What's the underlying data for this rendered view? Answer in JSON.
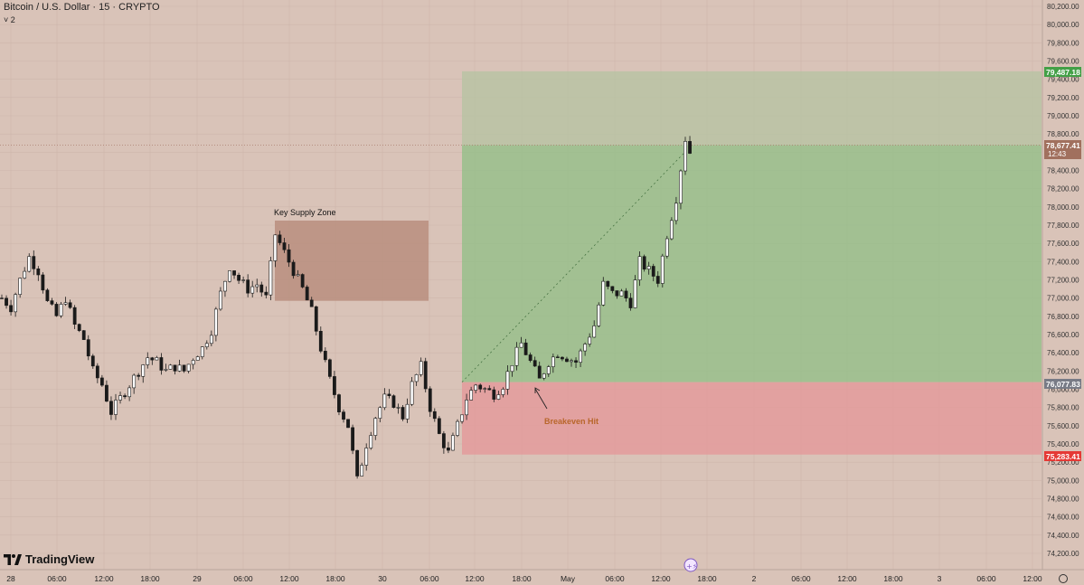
{
  "header": {
    "symbol_line": "Bitcoin / U.S. Dollar · 15 · CRYPTO",
    "collapse_indicator": "˅ 2"
  },
  "branding": {
    "logo_text": "TradingView",
    "logo_icon": "tradingview-logo-icon"
  },
  "annotations": {
    "supply_zone_label": "Key Supply Zone",
    "breakeven_label": "Breakeven Hit"
  },
  "price_tags": {
    "target": "79,487.18",
    "current": "78,677.41",
    "countdown": "12:43",
    "entry": "76,077.83",
    "stop": "75,283.41"
  },
  "colors": {
    "background": "#d9c3b8",
    "profit_zone": "#8fbf85",
    "loss_zone": "#e39b9b",
    "supply_zone": "#b88e7e",
    "target_tag": "#43a047",
    "current_tag": "#a1705e",
    "entry_tag": "#787b86",
    "stop_tag": "#e53935",
    "breakeven_text": "#b8662a"
  },
  "chart_data": {
    "type": "candlestick",
    "title": "Bitcoin / U.S. Dollar · 15 · CRYPTO",
    "ylim": [
      74000,
      80200
    ],
    "y_ticks": [
      "80,200.00",
      "80,000.00",
      "79,800.00",
      "79,600.00",
      "79,400.00",
      "79,200.00",
      "79,000.00",
      "78,800.00",
      "78,600.00",
      "78,400.00",
      "78,200.00",
      "78,000.00",
      "77,800.00",
      "77,600.00",
      "77,400.00",
      "77,200.00",
      "77,000.00",
      "76,800.00",
      "76,600.00",
      "76,400.00",
      "76,200.00",
      "76,000.00",
      "75,800.00",
      "75,600.00",
      "75,400.00",
      "75,200.00",
      "75,000.00",
      "74,800.00",
      "74,600.00",
      "74,400.00",
      "74,200.00"
    ],
    "x_ticks": [
      "28",
      "06:00",
      "12:00",
      "18:00",
      "29",
      "06:00",
      "12:00",
      "18:00",
      "30",
      "06:00",
      "12:00",
      "18:00",
      "May",
      "06:00",
      "12:00",
      "18:00",
      "2",
      "06:00",
      "12:00",
      "18:00",
      "3",
      "06:00",
      "12:00"
    ],
    "price_path": [
      [
        0,
        77000
      ],
      [
        2,
        76900
      ],
      [
        4,
        77200
      ],
      [
        6,
        77450
      ],
      [
        8,
        77300
      ],
      [
        10,
        76950
      ],
      [
        12,
        76800
      ],
      [
        14,
        77000
      ],
      [
        16,
        76700
      ],
      [
        18,
        76550
      ],
      [
        20,
        76200
      ],
      [
        22,
        76050
      ],
      [
        24,
        75750
      ],
      [
        26,
        75900
      ],
      [
        28,
        76050
      ],
      [
        30,
        76200
      ],
      [
        32,
        76350
      ],
      [
        34,
        76300
      ],
      [
        36,
        76200
      ],
      [
        38,
        76250
      ],
      [
        40,
        76200
      ],
      [
        42,
        76350
      ],
      [
        44,
        76450
      ],
      [
        46,
        76650
      ],
      [
        48,
        77050
      ],
      [
        50,
        77350
      ],
      [
        52,
        77200
      ],
      [
        54,
        77100
      ],
      [
        56,
        77150
      ],
      [
        58,
        77000
      ],
      [
        60,
        77700
      ],
      [
        62,
        77500
      ],
      [
        64,
        77300
      ],
      [
        66,
        77100
      ],
      [
        68,
        76850
      ],
      [
        70,
        76450
      ],
      [
        72,
        76100
      ],
      [
        74,
        75800
      ],
      [
        76,
        75600
      ],
      [
        78,
        75000
      ],
      [
        80,
        75400
      ],
      [
        82,
        75700
      ],
      [
        84,
        75900
      ],
      [
        86,
        75850
      ],
      [
        88,
        75700
      ],
      [
        90,
        76050
      ],
      [
        92,
        76250
      ],
      [
        94,
        75800
      ],
      [
        96,
        75500
      ],
      [
        98,
        75300
      ],
      [
        100,
        75600
      ],
      [
        102,
        75900
      ],
      [
        104,
        76050
      ],
      [
        106,
        76000
      ],
      [
        108,
        75950
      ],
      [
        110,
        76050
      ],
      [
        112,
        76300
      ],
      [
        114,
        76500
      ],
      [
        116,
        76300
      ],
      [
        118,
        76100
      ],
      [
        120,
        76300
      ],
      [
        122,
        76400
      ],
      [
        124,
        76350
      ],
      [
        126,
        76300
      ],
      [
        128,
        76500
      ],
      [
        130,
        76700
      ],
      [
        132,
        77150
      ],
      [
        134,
        77050
      ],
      [
        136,
        77050
      ],
      [
        138,
        76950
      ],
      [
        140,
        77400
      ],
      [
        142,
        77300
      ],
      [
        144,
        77200
      ],
      [
        146,
        77700
      ],
      [
        148,
        78100
      ],
      [
        150,
        78750
      ],
      [
        151,
        78600
      ]
    ],
    "price_path_note": "[bar_index, close]",
    "zones": {
      "key_supply_zone": [
        76970,
        77850
      ],
      "take_profit": 79487.18,
      "entry": 76077.83,
      "stop_loss": 75283.41
    },
    "current_price": 78677.41,
    "grid": true
  }
}
